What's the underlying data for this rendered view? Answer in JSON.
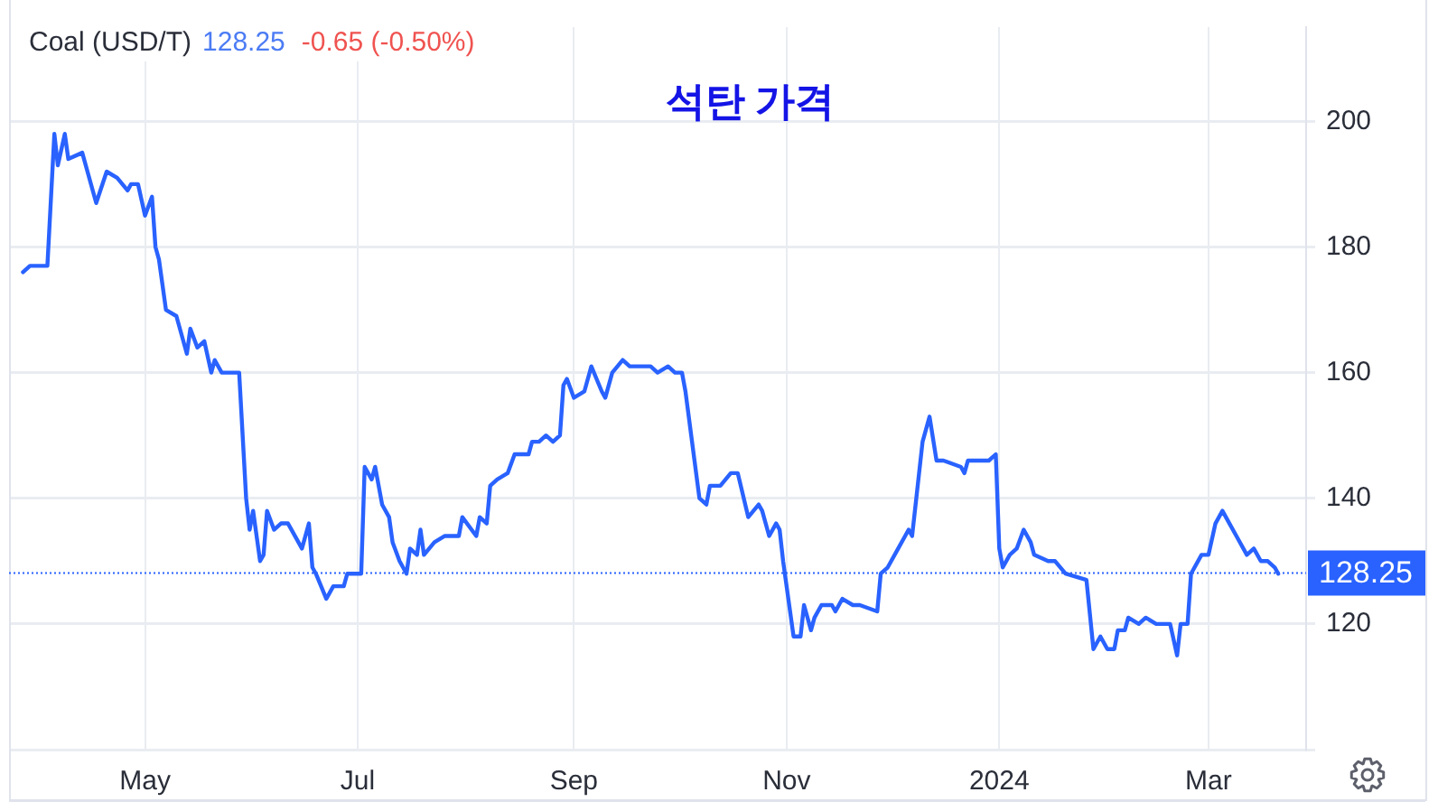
{
  "chart_data": {
    "type": "line",
    "title": "석탄 가격",
    "subtitle": "Coal (USD/T)",
    "annotations": [
      "128.25",
      "-0.65 (-0.50%)"
    ],
    "x": [
      "2023-03-27",
      "2023-03-29",
      "2023-04-03",
      "2023-04-05",
      "2023-04-06",
      "2023-04-08",
      "2023-04-09",
      "2023-04-13",
      "2023-04-17",
      "2023-04-20",
      "2023-04-23",
      "2023-04-26",
      "2023-04-27",
      "2023-04-29",
      "2023-05-01",
      "2023-05-03",
      "2023-05-04",
      "2023-05-05",
      "2023-05-07",
      "2023-05-10",
      "2023-05-13",
      "2023-05-14",
      "2023-05-16",
      "2023-05-18",
      "2023-05-20",
      "2023-05-21",
      "2023-05-23",
      "2023-05-28",
      "2023-05-30",
      "2023-05-31",
      "2023-06-01",
      "2023-06-03",
      "2023-06-04",
      "2023-06-05",
      "2023-06-07",
      "2023-06-09",
      "2023-06-11",
      "2023-06-14",
      "2023-06-15",
      "2023-06-17",
      "2023-06-18",
      "2023-06-19",
      "2023-06-22",
      "2023-06-24",
      "2023-06-27",
      "2023-06-28",
      "2023-07-02",
      "2023-07-03",
      "2023-07-05",
      "2023-07-06",
      "2023-07-08",
      "2023-07-10",
      "2023-07-11",
      "2023-07-13",
      "2023-07-15",
      "2023-07-16",
      "2023-07-18",
      "2023-07-19",
      "2023-07-20",
      "2023-07-23",
      "2023-07-26",
      "2023-07-30",
      "2023-07-31",
      "2023-08-04",
      "2023-08-05",
      "2023-08-07",
      "2023-08-08",
      "2023-08-10",
      "2023-08-13",
      "2023-08-15",
      "2023-08-17",
      "2023-08-19",
      "2023-08-20",
      "2023-08-22",
      "2023-08-24",
      "2023-08-26",
      "2023-08-28",
      "2023-08-29",
      "2023-08-30",
      "2023-09-01",
      "2023-09-04",
      "2023-09-06",
      "2023-09-09",
      "2023-09-10",
      "2023-09-12",
      "2023-09-15",
      "2023-09-17",
      "2023-09-23",
      "2023-09-25",
      "2023-09-28",
      "2023-09-30",
      "2023-10-02",
      "2023-10-03",
      "2023-10-07",
      "2023-10-09",
      "2023-10-10",
      "2023-10-13",
      "2023-10-16",
      "2023-10-18",
      "2023-10-21",
      "2023-10-24",
      "2023-10-25",
      "2023-10-27",
      "2023-10-29",
      "2023-10-30",
      "2023-10-31",
      "2023-11-03",
      "2023-11-05",
      "2023-11-06",
      "2023-11-08",
      "2023-11-09",
      "2023-11-11",
      "2023-11-14",
      "2023-11-15",
      "2023-11-17",
      "2023-11-20",
      "2023-11-22",
      "2023-11-27",
      "2023-11-28",
      "2023-11-30",
      "2023-12-03",
      "2023-12-05",
      "2023-12-06",
      "2023-12-07",
      "2023-12-10",
      "2023-12-12",
      "2023-12-14",
      "2023-12-16",
      "2023-12-21",
      "2023-12-22",
      "2023-12-23",
      "2023-12-28",
      "2023-12-29",
      "2023-12-31",
      "2024-01-01",
      "2024-01-02",
      "2024-01-04",
      "2024-01-06",
      "2024-01-08",
      "2024-01-10",
      "2024-01-11",
      "2024-01-15",
      "2024-01-17",
      "2024-01-20",
      "2024-01-26",
      "2024-01-28",
      "2024-01-30",
      "2024-02-01",
      "2024-02-03",
      "2024-02-04",
      "2024-02-06",
      "2024-02-07",
      "2024-02-10",
      "2024-02-12",
      "2024-02-15",
      "2024-02-18",
      "2024-02-19",
      "2024-02-21",
      "2024-02-22",
      "2024-02-24",
      "2024-02-25",
      "2024-02-28",
      "2024-03-01",
      "2024-03-03",
      "2024-03-05",
      "2024-03-07",
      "2024-03-09",
      "2024-03-12",
      "2024-03-14",
      "2024-03-16",
      "2024-03-18",
      "2024-03-20",
      "2024-03-21"
    ],
    "series": [
      {
        "color": "#2962ff",
        "values": [
          176,
          177,
          177,
          198,
          193,
          198,
          194,
          195,
          187,
          192,
          191,
          189,
          190,
          190,
          185,
          188,
          180,
          178,
          170,
          169,
          163,
          167,
          164,
          165,
          160,
          162,
          160,
          160,
          140,
          135,
          138,
          130,
          131,
          138,
          135,
          136,
          136,
          133,
          132,
          136,
          129,
          128,
          124,
          126,
          126,
          128,
          128,
          145,
          143,
          145,
          139,
          137,
          133,
          130,
          128,
          132,
          131,
          135,
          131,
          133,
          134,
          134,
          137,
          134,
          137,
          136,
          142,
          143,
          144,
          147,
          147,
          147,
          149,
          149,
          150,
          149,
          150,
          158,
          159,
          156,
          157,
          161,
          157,
          156,
          160,
          162,
          161,
          161,
          160,
          161,
          160,
          160,
          157,
          140,
          139,
          142,
          142,
          144,
          144,
          137,
          139,
          138,
          134,
          136,
          135,
          130,
          118,
          118,
          123,
          119,
          121,
          123,
          123,
          122,
          124,
          123,
          123,
          122,
          128,
          129,
          132,
          134,
          135,
          134,
          149,
          153,
          146,
          146,
          145,
          144,
          146,
          146,
          146,
          147,
          132,
          129,
          131,
          132,
          135,
          133,
          131,
          130,
          130,
          128,
          127,
          116,
          118,
          116,
          116,
          119,
          119,
          121,
          120,
          121,
          120,
          120,
          120,
          115,
          120,
          120,
          128,
          131,
          131,
          136,
          138,
          136,
          134,
          131,
          132,
          130,
          130,
          129,
          128
        ]
      }
    ],
    "xlim": [
      "2023-03-23",
      "2024-03-29"
    ],
    "xticks": [
      {
        "value": "2023-05-01",
        "label": "May"
      },
      {
        "value": "2023-07-01",
        "label": "Jul"
      },
      {
        "value": "2023-09-01",
        "label": "Sep"
      },
      {
        "value": "2023-11-01",
        "label": "Nov"
      },
      {
        "value": "2024-01-01",
        "label": "2024"
      },
      {
        "value": "2024-03-01",
        "label": "Mar"
      }
    ],
    "ylim": [
      100,
      215
    ],
    "yticks": [
      {
        "value": 100,
        "label": null
      },
      120,
      140,
      160,
      180,
      200
    ],
    "ref_lines": [
      {
        "axis": "y",
        "value": 128.25,
        "label": "128.25",
        "color": "#2962ff",
        "line_style": "dotted"
      }
    ],
    "grid": true,
    "legend": false,
    "marker": "none",
    "line_style": "solid"
  }
}
